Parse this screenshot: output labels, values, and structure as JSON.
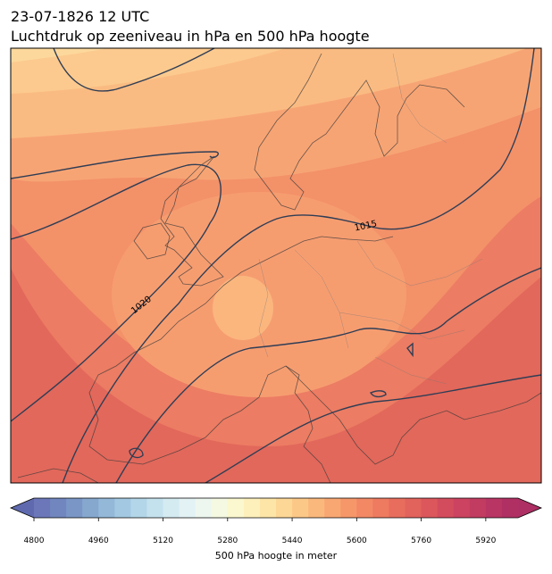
{
  "header": {
    "title": "23-07-1826 12 UTC",
    "subtitle": "Luchtdruk op zeeniveau in hPa en 500 hPa hoogte"
  },
  "map": {
    "contour_labels": [
      "1015",
      "1020"
    ]
  },
  "colorbar": {
    "label": "500 hPa hoogte in meter",
    "clim": [
      4800,
      6000
    ],
    "ticks": [
      4800,
      4960,
      5120,
      5280,
      5440,
      5600,
      5760,
      5920
    ],
    "colors": [
      "#6b77b8",
      "#7186bf",
      "#7a96c6",
      "#86a8cf",
      "#93b8d8",
      "#a2c9e1",
      "#b3d6e8",
      "#c4e2ee",
      "#d4ebf2",
      "#e3f2f4",
      "#eef7ef",
      "#f6f9e2",
      "#fbf8cf",
      "#fdf0bb",
      "#fde4a7",
      "#fdd796",
      "#fcc888",
      "#fbb87c",
      "#f9a772",
      "#f6976a",
      "#f38865",
      "#ee7a60",
      "#e86d5d",
      "#e2625c",
      "#db575c",
      "#d34c5e",
      "#cb4360",
      "#c23c62",
      "#b93563",
      "#b03064"
    ]
  }
}
